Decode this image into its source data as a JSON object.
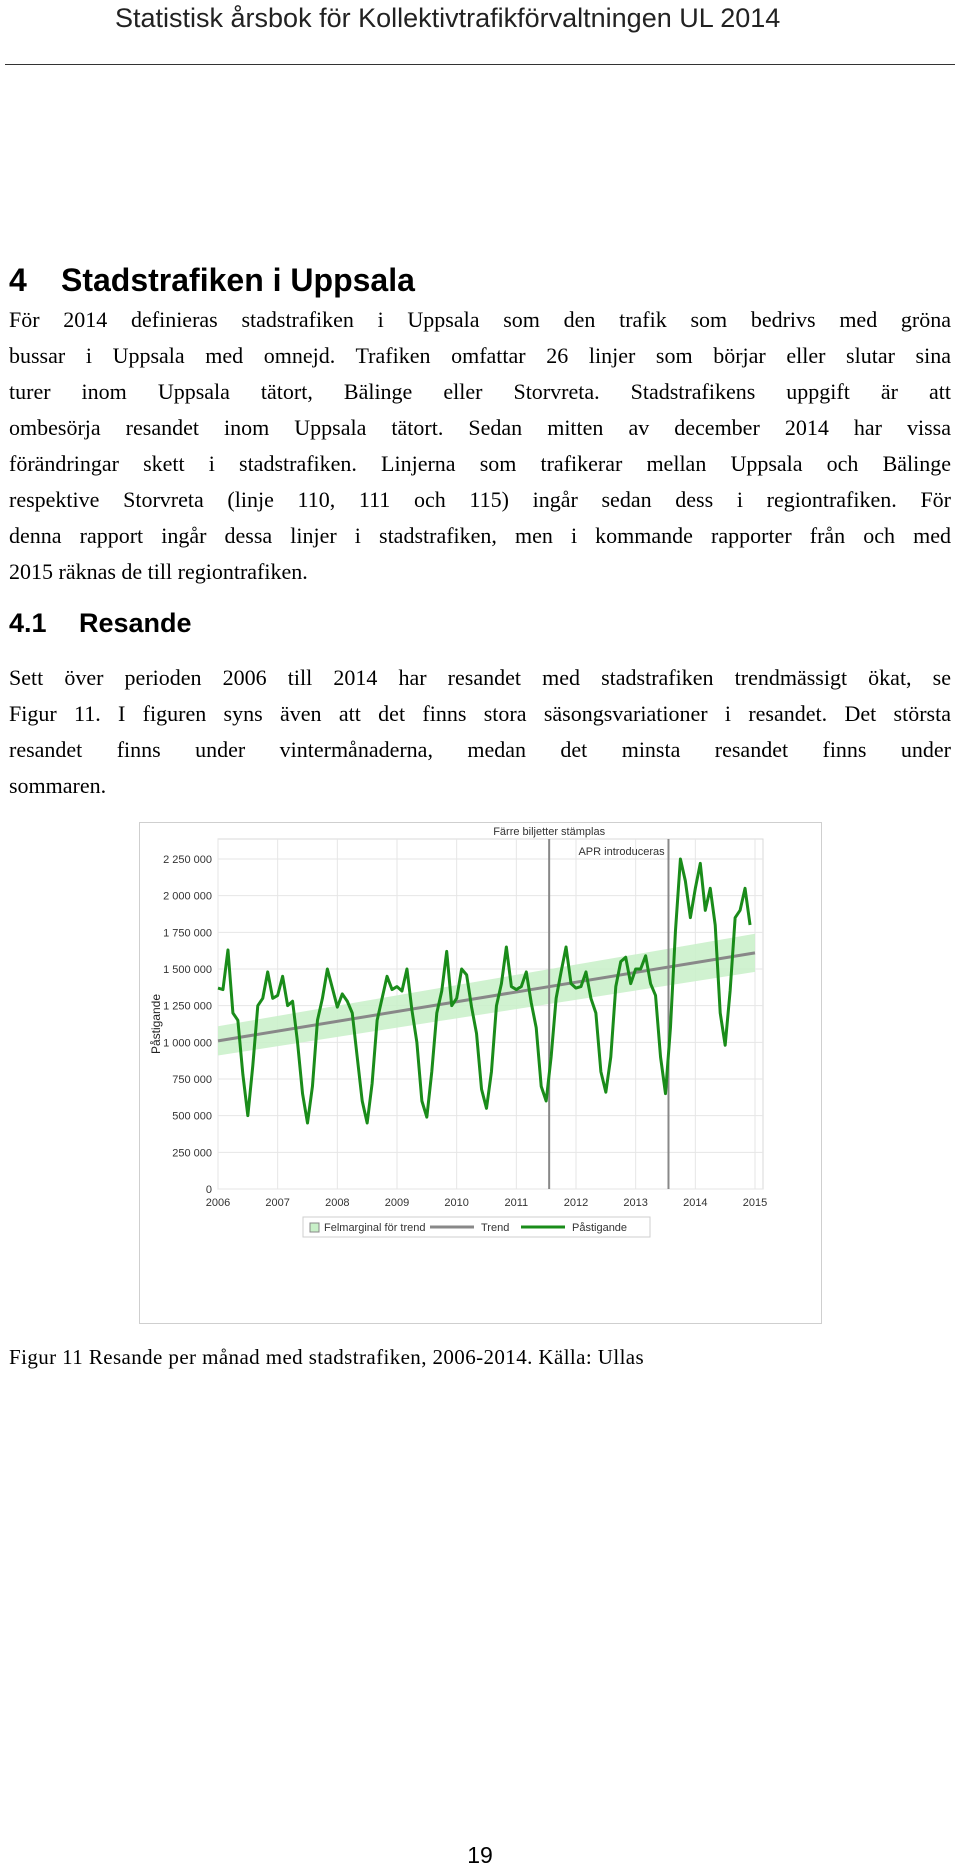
{
  "header": {
    "title": "Statistisk årsbok för Kollektivtrafikförvaltningen UL 2014"
  },
  "section": {
    "number": "4",
    "title": "Stadstrafiken i Uppsala",
    "paragraph_lines": [
      "För 2014 definieras stadstrafiken i Uppsala som den trafik som bedrivs med gröna",
      "bussar i Uppsala med omnejd. Trafiken omfattar 26 linjer som börjar eller slutar sina",
      "turer inom Uppsala tätort, Bälinge eller Storvreta. Stadstrafikens uppgift är att",
      "ombesörja resandet inom Uppsala tätort. Sedan mitten av december 2014 har vissa",
      "förändringar skett i stadstrafiken. Linjerna som trafikerar mellan Uppsala och Bälinge",
      "respektive Storvreta (linje 110, 111 och 115) ingår sedan dess i regiontrafiken. För",
      "denna rapport ingår dessa linjer i stadstrafiken, men i kommande rapporter från och med",
      "2015 räknas de till regiontrafiken."
    ]
  },
  "subsection": {
    "number": "4.1",
    "title": "Resande",
    "paragraph_lines": [
      "Sett över perioden 2006 till 2014 har resandet med stadstrafiken trendmässigt ökat, se",
      "Figur 11. I figuren syns även att det finns stora säsongsvariationer i resandet. Det största",
      "resandet finns under vintermånaderna, medan det minsta resandet finns under",
      "sommaren."
    ]
  },
  "figure": {
    "caption": "Figur 11 Resande per månad med stadstrafiken, 2006-2014. Källa: Ullas"
  },
  "chart_data": {
    "type": "line",
    "title": "",
    "xlabel": "",
    "ylabel": "Påstigande",
    "xlim": [
      2006,
      2015
    ],
    "ylim": [
      0,
      2250000
    ],
    "x_ticks": [
      "2006",
      "2007",
      "2008",
      "2009",
      "2010",
      "2011",
      "2012",
      "2013",
      "2014",
      "2015"
    ],
    "y_ticks": [
      "0",
      "250 000",
      "500 000",
      "750 000",
      "1 000 000",
      "1 250 000",
      "1 500 000",
      "1 750 000",
      "2 000 000",
      "2 250 000"
    ],
    "grid": true,
    "legend_position": "bottom",
    "legend": [
      "Felmarginal för trend",
      "Trend",
      "Påstigande"
    ],
    "colors": {
      "series": "#1a8c1a",
      "trend": "#888888",
      "band": "#c8f0c8",
      "event_line": "#888888"
    },
    "annotations": [
      {
        "x": 2011.55,
        "label": "Färre biljetter stämplas"
      },
      {
        "x": 2013.55,
        "label": "APR introduceras"
      }
    ],
    "trend": {
      "x": [
        2006,
        2015
      ],
      "y": [
        1010000,
        1610000
      ]
    },
    "trend_band": {
      "x": [
        2006,
        2015
      ],
      "lower": [
        910000,
        1480000
      ],
      "upper": [
        1110000,
        1740000
      ]
    },
    "series": [
      {
        "name": "Påstigande",
        "x": [
          2006.0,
          2006.083,
          2006.167,
          2006.25,
          2006.333,
          2006.417,
          2006.5,
          2006.583,
          2006.667,
          2006.75,
          2006.833,
          2006.917,
          2007.0,
          2007.083,
          2007.167,
          2007.25,
          2007.333,
          2007.417,
          2007.5,
          2007.583,
          2007.667,
          2007.75,
          2007.833,
          2007.917,
          2008.0,
          2008.083,
          2008.167,
          2008.25,
          2008.333,
          2008.417,
          2008.5,
          2008.583,
          2008.667,
          2008.75,
          2008.833,
          2008.917,
          2009.0,
          2009.083,
          2009.167,
          2009.25,
          2009.333,
          2009.417,
          2009.5,
          2009.583,
          2009.667,
          2009.75,
          2009.833,
          2009.917,
          2010.0,
          2010.083,
          2010.167,
          2010.25,
          2010.333,
          2010.417,
          2010.5,
          2010.583,
          2010.667,
          2010.75,
          2010.833,
          2010.917,
          2011.0,
          2011.083,
          2011.167,
          2011.25,
          2011.333,
          2011.417,
          2011.5,
          2011.583,
          2011.667,
          2011.75,
          2011.833,
          2011.917,
          2012.0,
          2012.083,
          2012.167,
          2012.25,
          2012.333,
          2012.417,
          2012.5,
          2012.583,
          2012.667,
          2012.75,
          2012.833,
          2012.917,
          2013.0,
          2013.083,
          2013.167,
          2013.25,
          2013.333,
          2013.417,
          2013.5,
          2013.583,
          2013.667,
          2013.75,
          2013.833,
          2013.917,
          2014.0,
          2014.083,
          2014.167,
          2014.25,
          2014.333,
          2014.417,
          2014.5,
          2014.583,
          2014.667,
          2014.75,
          2014.833,
          2014.917
        ],
        "values": [
          1370000,
          1360000,
          1630000,
          1200000,
          1150000,
          780000,
          500000,
          840000,
          1250000,
          1300000,
          1480000,
          1300000,
          1320000,
          1450000,
          1250000,
          1280000,
          1000000,
          650000,
          450000,
          700000,
          1150000,
          1300000,
          1500000,
          1370000,
          1240000,
          1330000,
          1280000,
          1200000,
          900000,
          600000,
          450000,
          720000,
          1150000,
          1300000,
          1450000,
          1360000,
          1380000,
          1350000,
          1500000,
          1220000,
          1000000,
          600000,
          490000,
          800000,
          1200000,
          1350000,
          1620000,
          1250000,
          1300000,
          1500000,
          1460000,
          1240000,
          1060000,
          680000,
          550000,
          800000,
          1250000,
          1400000,
          1650000,
          1380000,
          1360000,
          1380000,
          1480000,
          1270000,
          1100000,
          700000,
          600000,
          900000,
          1300000,
          1480000,
          1650000,
          1400000,
          1370000,
          1380000,
          1480000,
          1300000,
          1200000,
          800000,
          660000,
          900000,
          1380000,
          1550000,
          1580000,
          1400000,
          1500000,
          1500000,
          1590000,
          1400000,
          1320000,
          900000,
          650000,
          1100000,
          1760000,
          2250000,
          2100000,
          1850000,
          2050000,
          2220000,
          1900000,
          2050000,
          1800000,
          1200000,
          980000,
          1350000,
          1850000,
          1900000,
          2050000,
          1800000
        ]
      }
    ]
  },
  "page": {
    "number": "19"
  }
}
